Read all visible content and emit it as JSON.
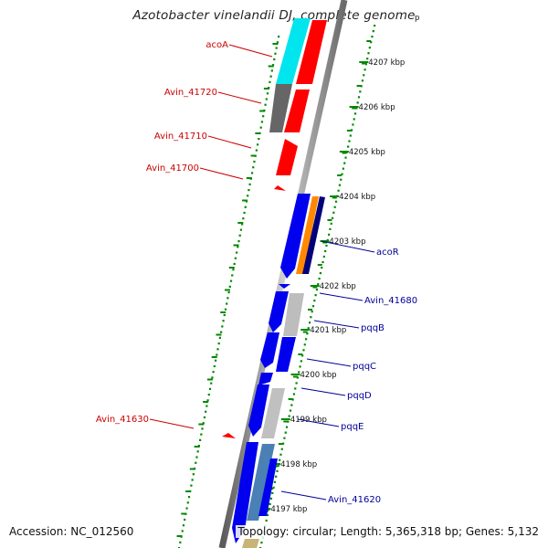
{
  "title": "Azotobacter vinelandii DJ, complete genome",
  "footer": {
    "accession": "Accession: NC_012560",
    "topology": "Topology: circular; Length: 5,365,318 bp; Genes: 5,132"
  },
  "colors": {
    "forward_label": "#cc0000",
    "reverse_label": "#000099",
    "backbone": "#888888",
    "tick": "#008800"
  },
  "ruler": {
    "unit": "kbp",
    "labels": [
      "4207 kbp",
      "4206 kbp",
      "4205 kbp",
      "4204 kbp",
      "4203 kbp",
      "4202 kbp",
      "4201 kbp",
      "4200 kbp",
      "4199 kbp",
      "4198 kbp",
      "4197 kbp"
    ],
    "partial_label": "p"
  },
  "genes": {
    "forward": [
      {
        "label": "acoA",
        "color": "#00e5ee"
      },
      {
        "label": "Avin_41720",
        "color": "#666666"
      },
      {
        "label": "Avin_41710",
        "color": "#ff0000"
      },
      {
        "label": "Avin_41700",
        "color": "#ff0000"
      },
      {
        "label": "Avin_41630",
        "color": "#ff0000"
      }
    ],
    "reverse": [
      {
        "label": "acoR",
        "color": "#0000ee"
      },
      {
        "label": "Avin_41680",
        "color": "#0000ee"
      },
      {
        "label": "pqqB",
        "color": "#0000ee"
      },
      {
        "label": "pqqC",
        "color": "#0000ee"
      },
      {
        "label": "pqqD",
        "color": "#0000ee"
      },
      {
        "label": "pqqE",
        "color": "#0000ee"
      },
      {
        "label": "Avin_41620",
        "color": "#0000ee"
      }
    ]
  }
}
